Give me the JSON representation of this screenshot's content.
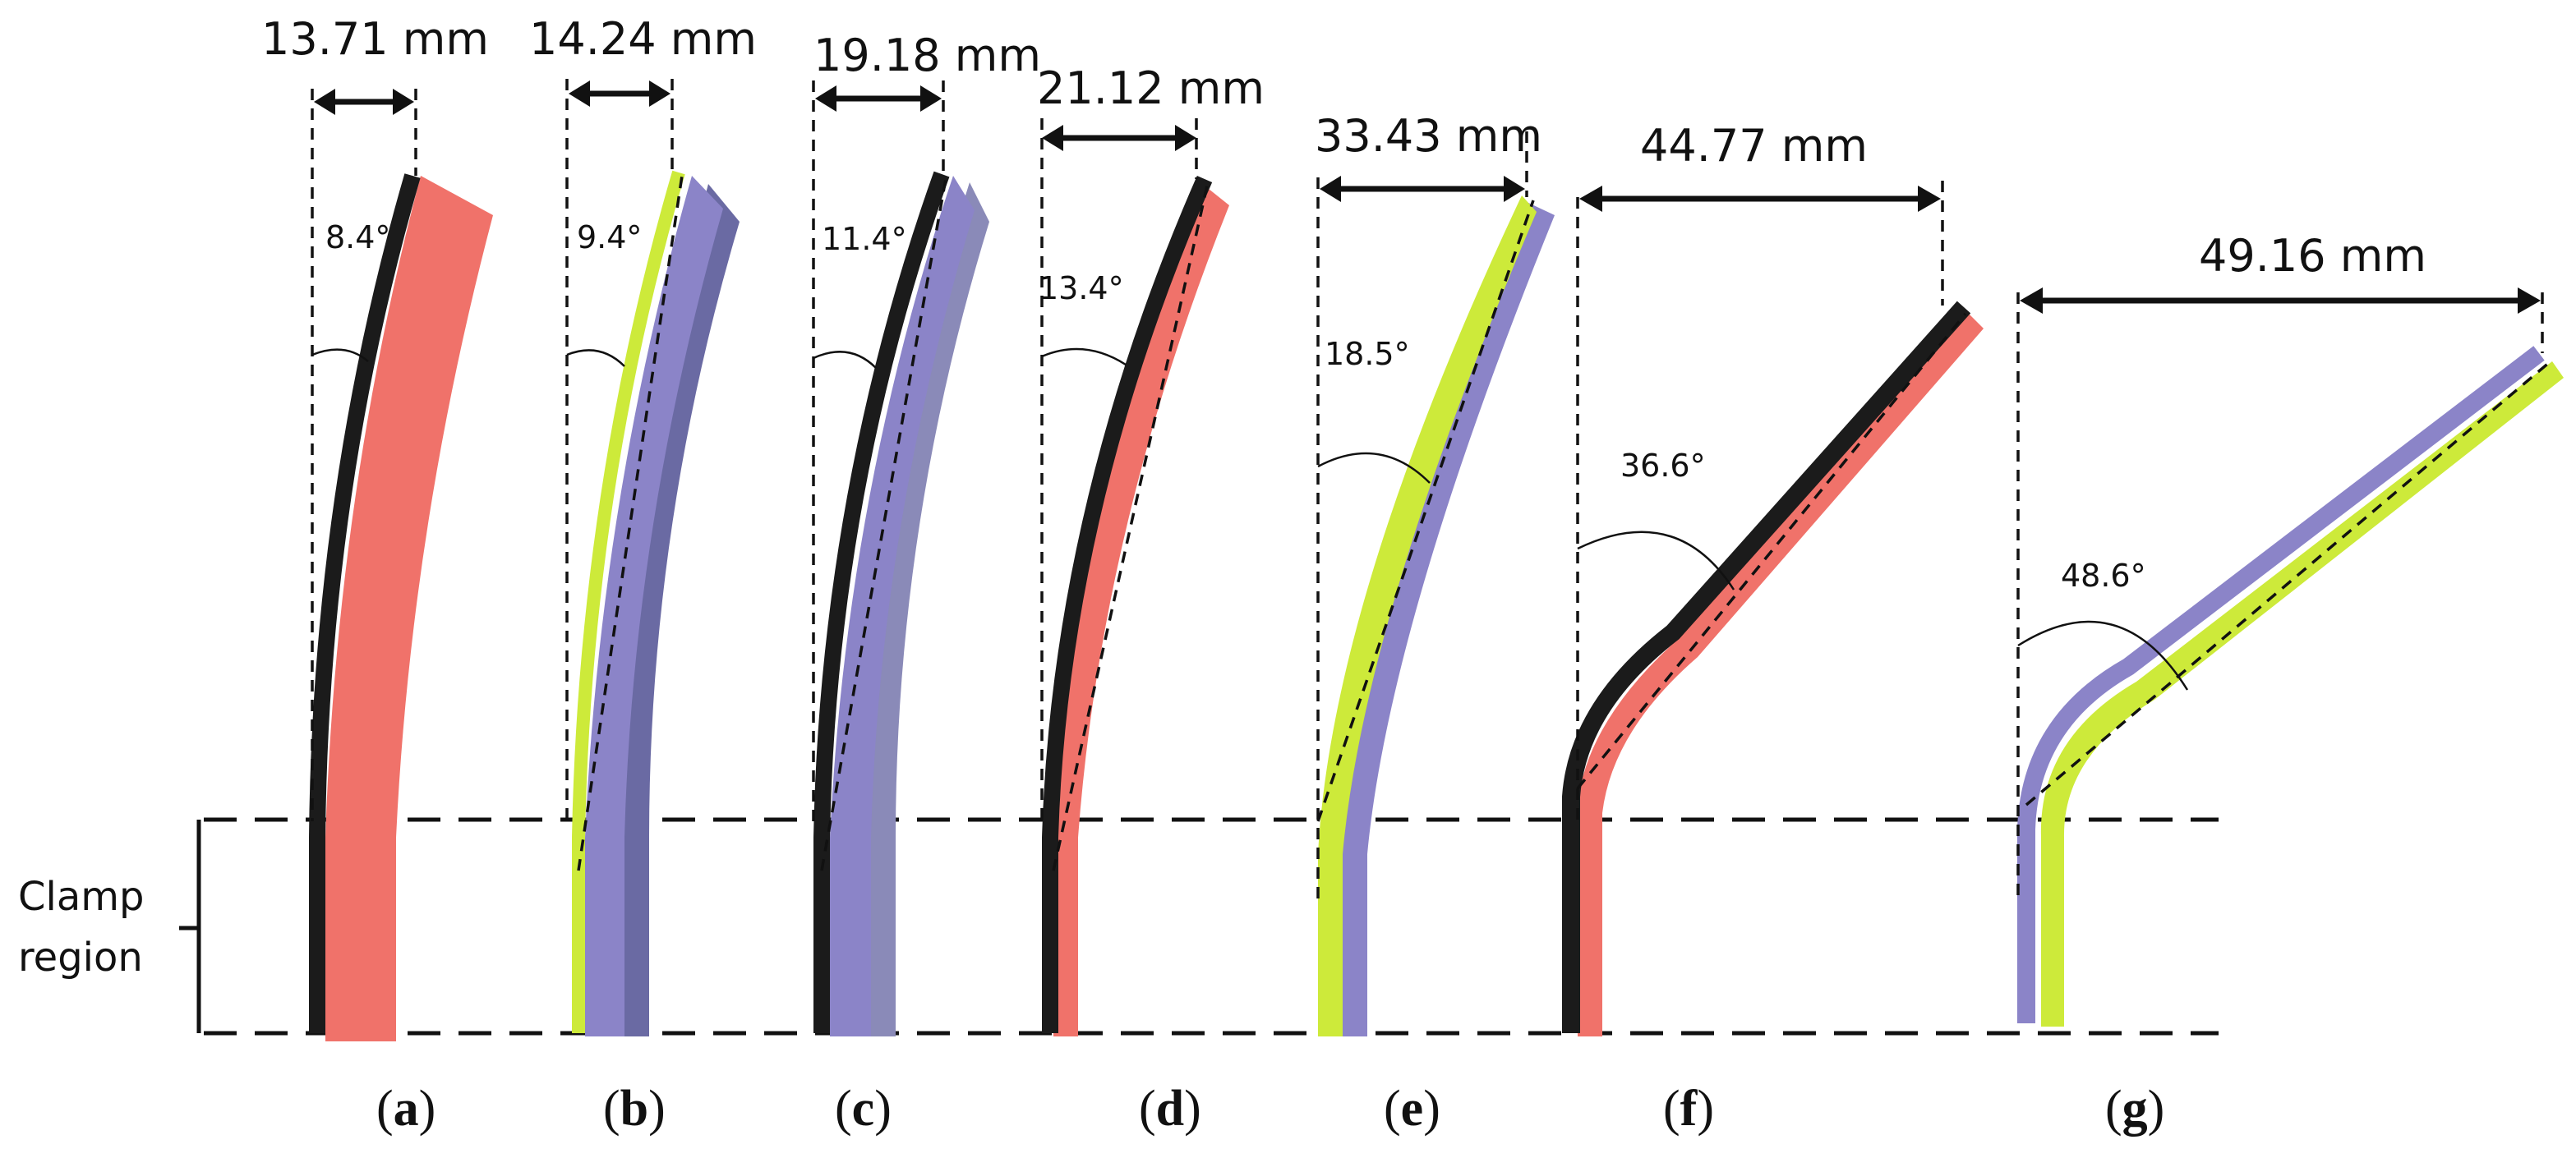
{
  "figure": {
    "clamp_label_line1": "Clamp",
    "clamp_label_line2": "region",
    "colors": {
      "red": "#f0726a",
      "red_dark": "#e2504a",
      "purple": "#8b84c8",
      "purple_dark": "#6f68ad",
      "green": "#cdea3a",
      "black": "#1b1b1b",
      "dark_lavender": "#6a6aa3"
    }
  },
  "specimens": [
    {
      "id": "a",
      "label_open": "(",
      "label_letter": "a",
      "label_close": ")",
      "tip_deflection": "13.71 mm",
      "deflection_mm": 13.71,
      "bend_angle": "8.4°",
      "bend_angle_deg": 8.4,
      "layers": [
        "black",
        "red"
      ]
    },
    {
      "id": "b",
      "label_open": "(",
      "label_letter": "b",
      "label_close": ")",
      "tip_deflection": "14.24 mm",
      "deflection_mm": 14.24,
      "bend_angle": "9.4°",
      "bend_angle_deg": 9.4,
      "layers": [
        "green",
        "purple",
        "dark_lavender"
      ]
    },
    {
      "id": "c",
      "label_open": "(",
      "label_letter": "c",
      "label_close": ")",
      "tip_deflection": "19.18 mm",
      "deflection_mm": 19.18,
      "bend_angle": "11.4°",
      "bend_angle_deg": 11.4,
      "layers": [
        "black",
        "purple",
        "dark_lavender"
      ]
    },
    {
      "id": "d",
      "label_open": "(",
      "label_letter": "d",
      "label_close": ")",
      "tip_deflection": "21.12 mm",
      "deflection_mm": 21.12,
      "bend_angle": "13.4°",
      "bend_angle_deg": 13.4,
      "layers": [
        "black",
        "red"
      ]
    },
    {
      "id": "e",
      "label_open": "(",
      "label_letter": "e",
      "label_close": ")",
      "tip_deflection": "33.43 mm",
      "deflection_mm": 33.43,
      "bend_angle": "18.5°",
      "bend_angle_deg": 18.5,
      "layers": [
        "green",
        "purple"
      ]
    },
    {
      "id": "f",
      "label_open": "(",
      "label_letter": "f",
      "label_close": ")",
      "tip_deflection": "44.77 mm",
      "deflection_mm": 44.77,
      "bend_angle": "36.6°",
      "bend_angle_deg": 36.6,
      "layers": [
        "black",
        "red"
      ]
    },
    {
      "id": "g",
      "label_open": "(",
      "label_letter": "g",
      "label_close": ")",
      "tip_deflection": "49.16 mm",
      "deflection_mm": 49.16,
      "bend_angle": "48.6°",
      "bend_angle_deg": 48.6,
      "layers": [
        "purple",
        "green"
      ]
    }
  ]
}
